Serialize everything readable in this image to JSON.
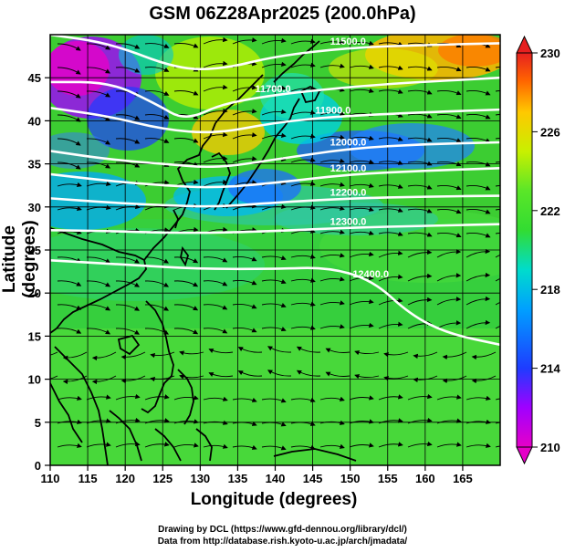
{
  "title": "GSM 06Z28Apr2025 (200.0hPa)",
  "axes": {
    "xlabel": "Longitude (degrees)",
    "ylabel": "Latitude  (degrees)",
    "xlim": [
      110,
      170
    ],
    "ylim": [
      0,
      50
    ],
    "xticks": [
      110,
      115,
      120,
      125,
      130,
      135,
      140,
      145,
      150,
      155,
      160,
      165
    ],
    "yticks": [
      0,
      5,
      10,
      15,
      20,
      25,
      30,
      35,
      40,
      45
    ],
    "grid": true
  },
  "colorbar": {
    "ticks": [
      210,
      214,
      218,
      222,
      226,
      230
    ],
    "range": [
      210,
      230
    ],
    "colors": [
      "#e600c8",
      "#a000ff",
      "#1e3cff",
      "#00a0ff",
      "#00dccc",
      "#32dc32",
      "#5ae628",
      "#c8f000",
      "#ffc800",
      "#ff6400",
      "#e62020"
    ]
  },
  "contours": [
    {
      "label": "11500.0",
      "points": [
        [
          110,
          50
        ],
        [
          118,
          49
        ],
        [
          127,
          46
        ],
        [
          133,
          46
        ],
        [
          140,
          47.5
        ],
        [
          150,
          48.5
        ],
        [
          160,
          48.8
        ],
        [
          170,
          49
        ]
      ]
    },
    {
      "label": "11700.0",
      "points": [
        [
          110,
          44.5
        ],
        [
          118,
          44.5
        ],
        [
          124,
          42
        ],
        [
          128,
          40
        ],
        [
          133,
          42
        ],
        [
          140,
          43
        ],
        [
          145,
          43.5
        ],
        [
          155,
          44.3
        ],
        [
          170,
          45
        ]
      ]
    },
    {
      "label": "11900.0",
      "points": [
        [
          110,
          41.5
        ],
        [
          118,
          40.5
        ],
        [
          125,
          39
        ],
        [
          132,
          38.5
        ],
        [
          140,
          39.8
        ],
        [
          148,
          40.5
        ],
        [
          160,
          41
        ],
        [
          170,
          41.3
        ]
      ]
    },
    {
      "label": "12000.0",
      "points": [
        [
          110,
          36.5
        ],
        [
          118,
          35.5
        ],
        [
          125,
          35
        ],
        [
          132,
          34.5
        ],
        [
          140,
          35.5
        ],
        [
          150,
          36.8
        ],
        [
          160,
          37.3
        ],
        [
          170,
          37.5
        ]
      ]
    },
    {
      "label": "12100.0",
      "points": [
        [
          110,
          33.8
        ],
        [
          118,
          33
        ],
        [
          125,
          32.5
        ],
        [
          132,
          32.2
        ],
        [
          140,
          32.8
        ],
        [
          150,
          33.8
        ],
        [
          160,
          34.2
        ],
        [
          170,
          34.5
        ]
      ]
    },
    {
      "label": "12200.0",
      "points": [
        [
          110,
          31
        ],
        [
          118,
          30.5
        ],
        [
          125,
          30.2
        ],
        [
          132,
          30
        ],
        [
          140,
          30.5
        ],
        [
          150,
          31
        ],
        [
          160,
          31.2
        ],
        [
          170,
          31.3
        ]
      ]
    },
    {
      "label": "12300.0",
      "points": [
        [
          110,
          27.3
        ],
        [
          118,
          27.2
        ],
        [
          125,
          27
        ],
        [
          132,
          27
        ],
        [
          140,
          27.2
        ],
        [
          150,
          27.6
        ],
        [
          160,
          27.8
        ],
        [
          170,
          28
        ]
      ]
    },
    {
      "label": "12400.0",
      "points": [
        [
          110,
          23.8
        ],
        [
          120,
          23.3
        ],
        [
          130,
          22.8
        ],
        [
          140,
          22.8
        ],
        [
          147,
          23
        ],
        [
          153,
          21.5
        ],
        [
          158,
          17.5
        ],
        [
          163,
          15.3
        ],
        [
          170,
          14
        ]
      ]
    }
  ],
  "colors": {
    "land_outline": "#000000",
    "contour": "#ffffff",
    "streamline": "#000000"
  },
  "credits": [
    "Drawing by DCL (https://www.gfd-dennou.org/library/dcl/)",
    "Data from http://database.rish.kyoto-u.ac.jp/arch/jmadata/"
  ]
}
